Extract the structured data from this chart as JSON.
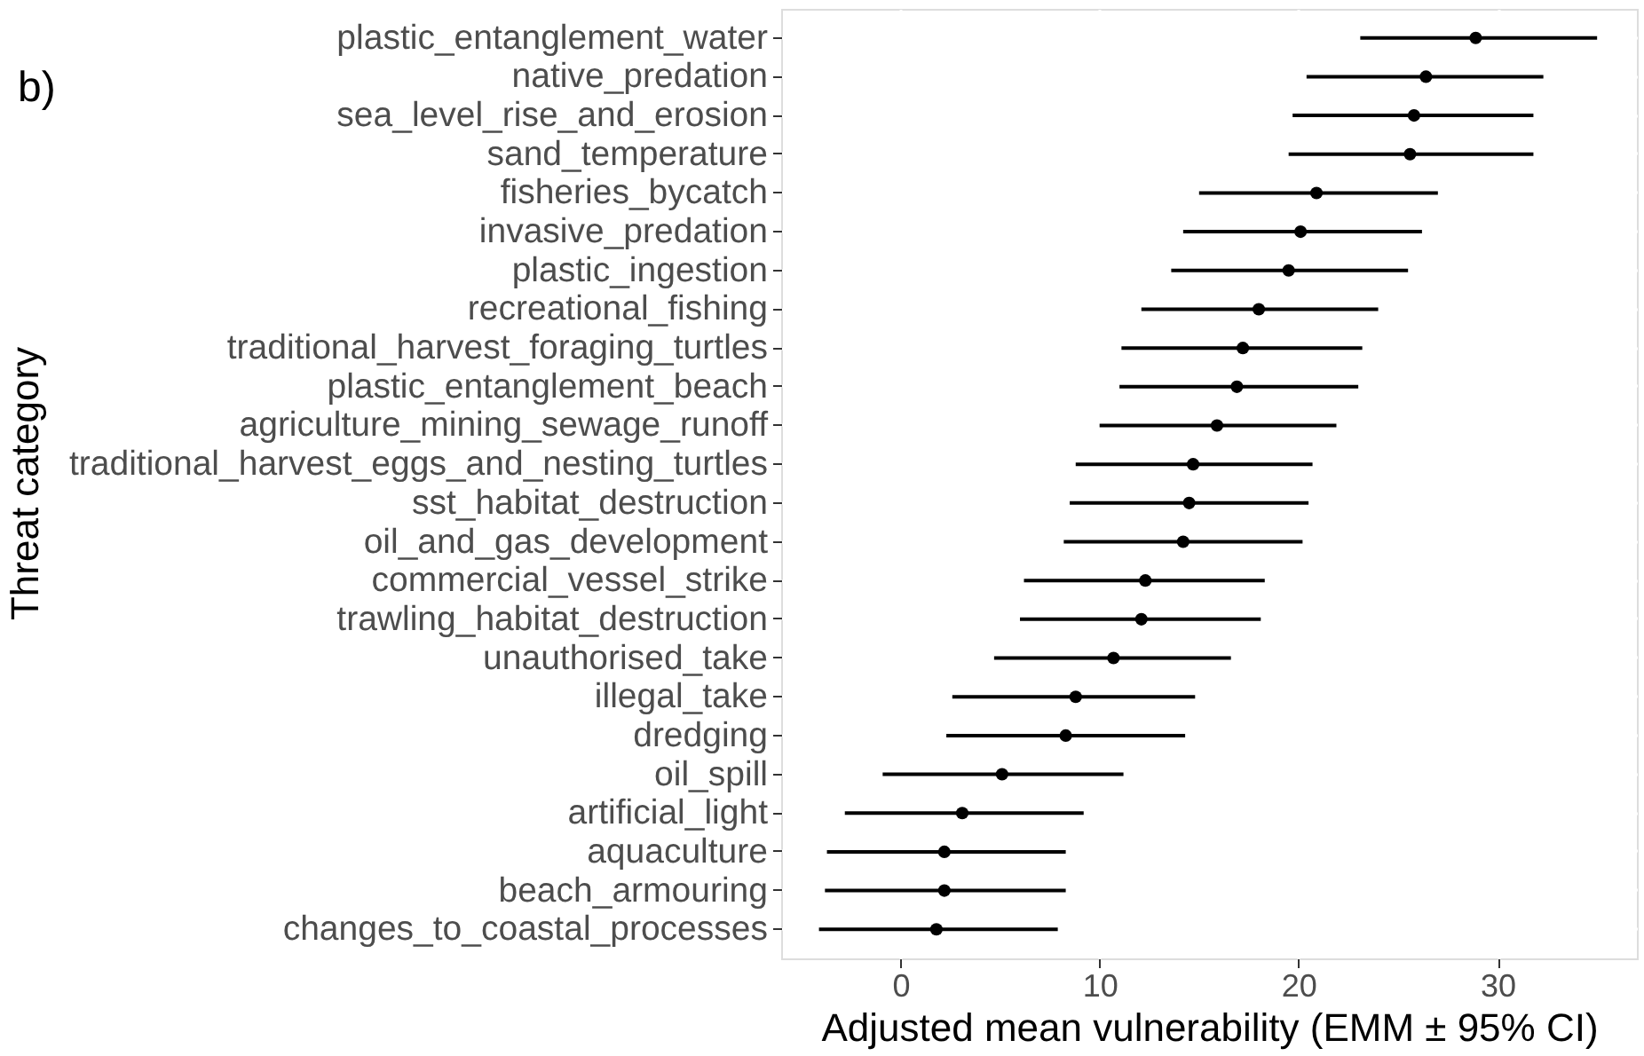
{
  "chart_data": {
    "type": "scatter",
    "orientation": "horizontal",
    "xlabel": "Adjusted mean vulnerability (EMM ± 95% CI)",
    "ylabel": "Threat category",
    "annotations": [
      "b)"
    ],
    "categories": [
      "plastic_entanglement_water",
      "native_predation",
      "sea_level_rise_and_erosion",
      "sand_temperature",
      "fisheries_bycatch",
      "invasive_predation",
      "plastic_ingestion",
      "recreational_fishing",
      "traditional_harvest_foraging_turtles",
      "plastic_entanglement_beach",
      "agriculture_mining_sewage_runoff",
      "traditional_harvest_eggs_and_nesting_turtles",
      "sst_habitat_destruction",
      "oil_and_gas_development",
      "commercial_vessel_strike",
      "trawling_habitat_destruction",
      "unauthorised_take",
      "illegal_take",
      "dredging",
      "oil_spill",
      "artificial_light",
      "aquaculture",
      "beach_armouring",
      "changes_to_coastal_processes"
    ],
    "values": [
      28.9,
      26.4,
      25.8,
      25.6,
      20.9,
      20.1,
      19.5,
      18.0,
      17.2,
      16.9,
      15.9,
      14.7,
      14.5,
      14.2,
      12.3,
      12.1,
      10.7,
      8.8,
      8.3,
      5.1,
      3.1,
      2.2,
      2.2,
      1.8
    ],
    "errors": [
      [
        23.1,
        35.0
      ],
      [
        20.4,
        32.3
      ],
      [
        19.7,
        31.8
      ],
      [
        19.5,
        31.8
      ],
      [
        15.0,
        27.0
      ],
      [
        14.2,
        26.2
      ],
      [
        13.6,
        25.5
      ],
      [
        12.1,
        24.0
      ],
      [
        11.1,
        23.2
      ],
      [
        11.0,
        23.0
      ],
      [
        10.0,
        21.9
      ],
      [
        8.8,
        20.7
      ],
      [
        8.5,
        20.5
      ],
      [
        8.2,
        20.2
      ],
      [
        6.2,
        18.3
      ],
      [
        6.0,
        18.1
      ],
      [
        4.7,
        16.6
      ],
      [
        2.6,
        14.8
      ],
      [
        2.3,
        14.3
      ],
      [
        -0.9,
        11.2
      ],
      [
        -2.8,
        9.2
      ],
      [
        -3.7,
        8.3
      ],
      [
        -3.8,
        8.3
      ],
      [
        -4.1,
        7.9
      ]
    ],
    "color": "#000000",
    "xlim": [
      -6,
      37
    ],
    "xticks": [
      0,
      10,
      20,
      30
    ],
    "grid": true,
    "marker": "circle"
  }
}
